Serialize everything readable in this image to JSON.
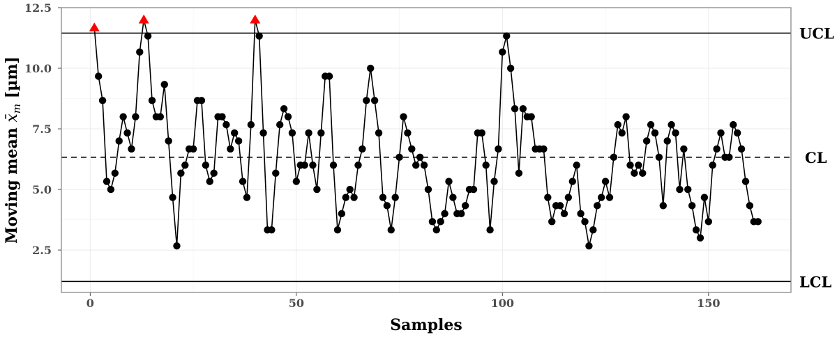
{
  "chart_data": {
    "type": "line",
    "xlabel": "Samples",
    "ylabel_main": "Moving mean ",
    "ylabel_var": "x̄",
    "ylabel_sub": "m",
    "ylabel_unit": " [µm]",
    "xlim": [
      -7,
      170
    ],
    "ylim": [
      0.75,
      12.5
    ],
    "x_ticks": [
      0,
      50,
      100,
      150
    ],
    "x_tick_labels": [
      "0",
      "50",
      "100",
      "150"
    ],
    "y_ticks": [
      2.5,
      5.0,
      7.5,
      10.0,
      12.5
    ],
    "y_tick_labels": [
      "2.5",
      "5.0",
      "7.5",
      "10.0",
      "12.5"
    ],
    "grid": true,
    "control_limits": {
      "UCL": {
        "label": "UCL",
        "value": 11.45,
        "style": "solid"
      },
      "CL": {
        "label": "CL",
        "value": 6.33,
        "style": "dashed"
      },
      "LCL": {
        "label": "LCL",
        "value": 1.2,
        "style": "solid"
      }
    },
    "series": [
      {
        "x": [
          1,
          2,
          3,
          4,
          5,
          6,
          7,
          8,
          9,
          10,
          11,
          12,
          13,
          14,
          15,
          16,
          17,
          18,
          19,
          20,
          21,
          22,
          23,
          24,
          25,
          26,
          27,
          28,
          29,
          30,
          31,
          32,
          33,
          34,
          35,
          36,
          37,
          38,
          39,
          40,
          41,
          42,
          43,
          44,
          45,
          46,
          47,
          48,
          49,
          50,
          51,
          52,
          53,
          54,
          55,
          56,
          57,
          58,
          59,
          60,
          61,
          62,
          63,
          64,
          65,
          66,
          67,
          68,
          69,
          70,
          71,
          72,
          73,
          74,
          75,
          76,
          77,
          78,
          79,
          80,
          81,
          82,
          83,
          84,
          85,
          86,
          87,
          88,
          89,
          90,
          91,
          92,
          93,
          94,
          95,
          96,
          97,
          98,
          99,
          100,
          101,
          102,
          103,
          104,
          105,
          106,
          107,
          108,
          109,
          110,
          111,
          112,
          113,
          114,
          115,
          116,
          117,
          118,
          119,
          120,
          121,
          122,
          123,
          124,
          125,
          126,
          127,
          128,
          129,
          130,
          131,
          132,
          133,
          134,
          135,
          136,
          137,
          138,
          139,
          140,
          141,
          142,
          143,
          144,
          145,
          146,
          147,
          148,
          149,
          150,
          151,
          152,
          153,
          154,
          155,
          156,
          157,
          158,
          159,
          160,
          161,
          162
        ],
        "y": [
          11.67,
          9.67,
          8.67,
          5.33,
          5.0,
          5.67,
          7.0,
          8.0,
          7.33,
          6.67,
          8.0,
          10.67,
          12.0,
          11.33,
          8.67,
          8.0,
          8.0,
          9.33,
          7.0,
          4.67,
          2.67,
          5.67,
          6.0,
          6.67,
          6.67,
          8.67,
          8.67,
          6.0,
          5.33,
          5.67,
          8.0,
          8.0,
          7.67,
          6.67,
          7.33,
          7.0,
          5.33,
          4.67,
          7.67,
          12.0,
          11.33,
          7.33,
          3.33,
          3.33,
          5.67,
          7.67,
          8.33,
          8.0,
          7.33,
          5.33,
          6.0,
          6.0,
          7.33,
          6.0,
          5.0,
          7.33,
          9.67,
          9.67,
          6.0,
          3.33,
          4.0,
          4.67,
          5.0,
          4.67,
          6.0,
          6.67,
          8.67,
          10.0,
          8.67,
          7.33,
          4.67,
          4.33,
          3.33,
          4.67,
          6.33,
          8.0,
          7.33,
          6.67,
          6.0,
          6.33,
          6.0,
          5.0,
          3.67,
          3.33,
          3.67,
          4.0,
          5.33,
          4.67,
          4.0,
          4.0,
          4.33,
          5.0,
          5.0,
          7.33,
          7.33,
          6.0,
          3.33,
          5.33,
          6.67,
          10.67,
          11.33,
          10.0,
          8.33,
          5.67,
          8.33,
          8.0,
          8.0,
          6.67,
          6.67,
          6.67,
          4.67,
          3.67,
          4.33,
          4.33,
          4.0,
          4.67,
          5.33,
          6.0,
          4.0,
          3.67,
          2.67,
          3.33,
          4.33,
          4.67,
          5.33,
          4.67,
          6.33,
          7.67,
          7.33,
          8.0,
          6.0,
          5.67,
          6.0,
          5.67,
          7.0,
          7.67,
          7.33,
          6.33,
          4.33,
          7.0,
          7.67,
          7.33,
          5.0,
          6.67,
          5.0,
          4.33,
          3.33,
          3.0,
          4.67,
          3.67,
          6.0,
          6.67,
          7.33,
          6.33,
          6.33,
          7.67,
          7.33,
          6.67,
          5.33,
          4.33,
          3.67,
          3.67
        ],
        "out_of_control_x": [
          1,
          13,
          40
        ],
        "out_of_control_y": [
          11.67,
          12.0,
          12.0
        ]
      }
    ],
    "colors": {
      "line": "#000000",
      "point": "#000000",
      "out_of_control": "#ff0000",
      "panel_border": "#7f7f7f"
    }
  }
}
